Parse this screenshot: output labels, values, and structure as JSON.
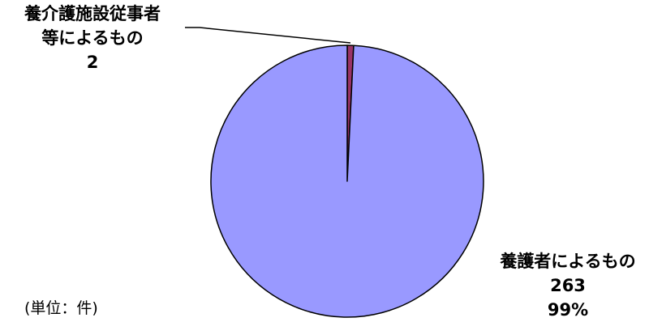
{
  "chart_data": {
    "type": "pie",
    "slices": [
      {
        "name_line1": "養介護施設従事者",
        "name_line2": "等によるもの",
        "value": 2,
        "value_label": "2",
        "color": "#993366"
      },
      {
        "name": "養護者によるもの",
        "value": 263,
        "value_label": "263",
        "percent_label": "99%",
        "color": "#9999ff"
      }
    ],
    "start_angle_deg": 0,
    "direction": "clockwise",
    "unit_note": "(単位：件)"
  }
}
